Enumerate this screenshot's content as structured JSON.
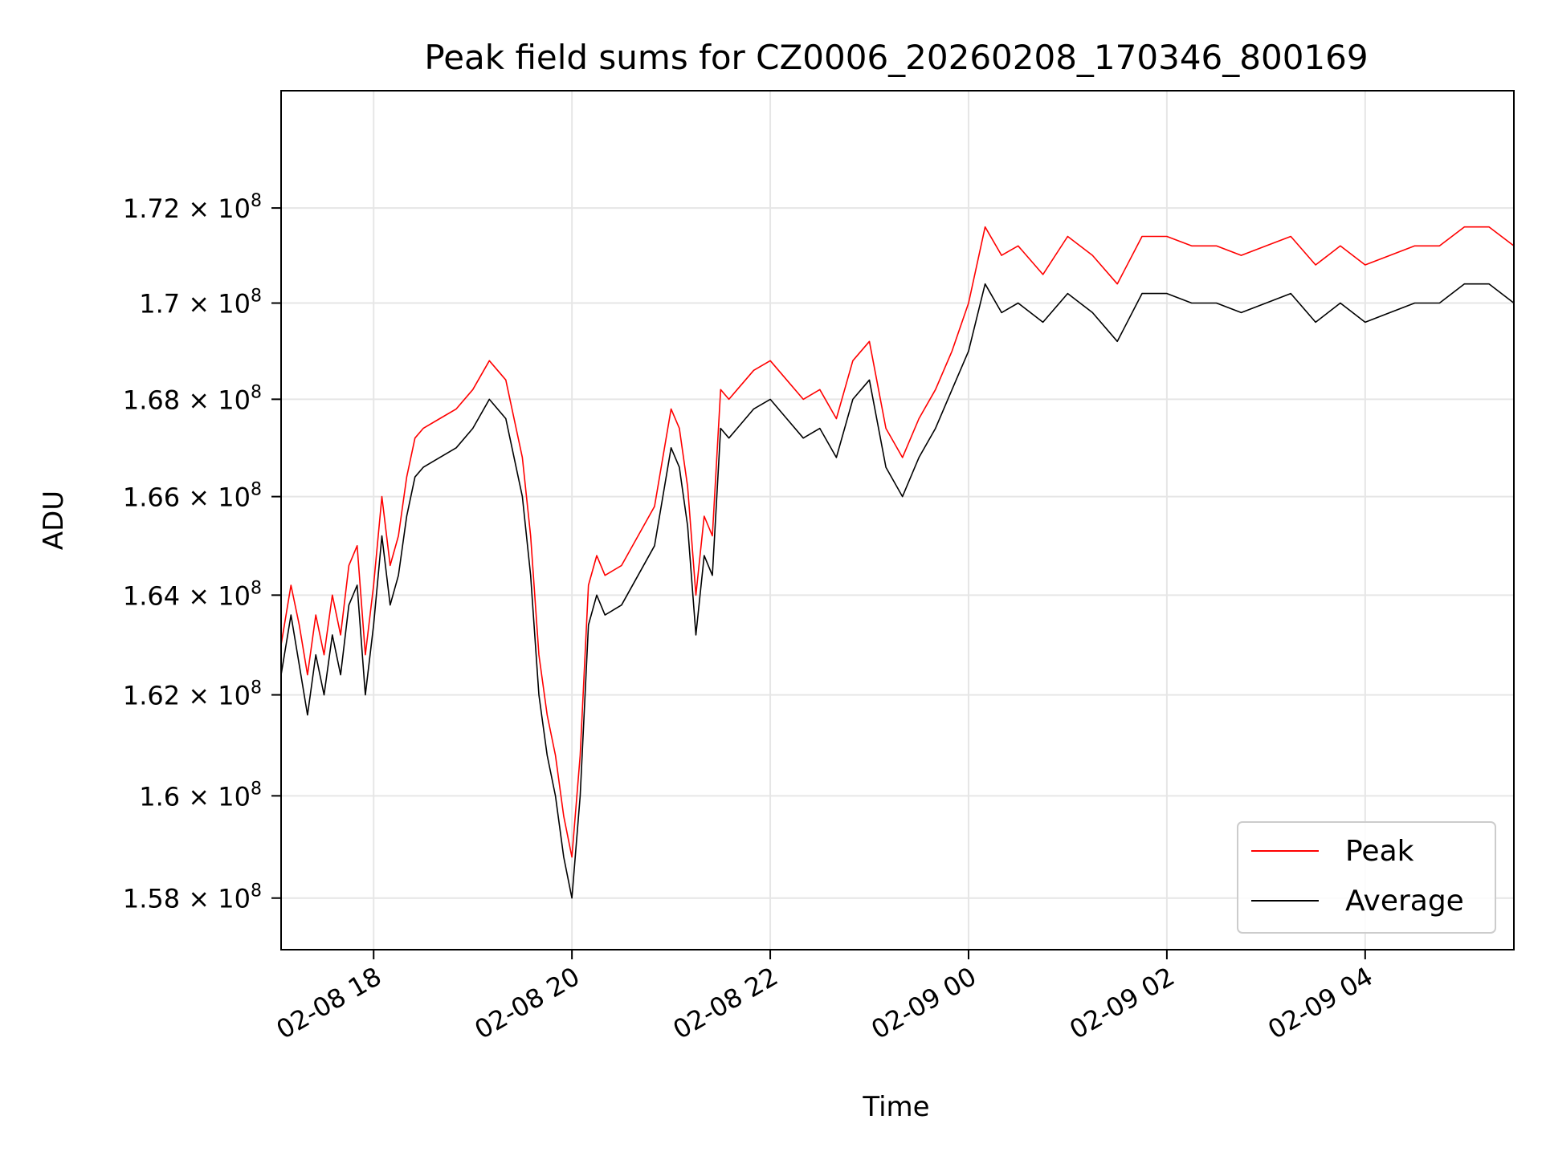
{
  "chart_data": {
    "type": "line",
    "title": "Peak field sums for CZ0006_20260208_170346_800169",
    "xlabel": "Time",
    "ylabel": "ADU",
    "y_scale": "log",
    "xlim": [
      "2026-02-08 17:04",
      "2026-02-09 05:30"
    ],
    "ylim": [
      157000000,
      174500000
    ],
    "grid": true,
    "legend_position": "lower-right",
    "x_ticks": [
      {
        "value": "2026-02-08 18:00",
        "label": "02-08 18"
      },
      {
        "value": "2026-02-08 20:00",
        "label": "02-08 20"
      },
      {
        "value": "2026-02-08 22:00",
        "label": "02-08 22"
      },
      {
        "value": "2026-02-09 00:00",
        "label": "02-09 00"
      },
      {
        "value": "2026-02-09 02:00",
        "label": "02-09 02"
      },
      {
        "value": "2026-02-09 04:00",
        "label": "02-09 04"
      }
    ],
    "y_ticks": [
      {
        "value": 158000000,
        "mantissa": "1.58",
        "exponent": "8"
      },
      {
        "value": 160000000,
        "mantissa": "1.6",
        "exponent": "8"
      },
      {
        "value": 162000000,
        "mantissa": "1.62",
        "exponent": "8"
      },
      {
        "value": 164000000,
        "mantissa": "1.64",
        "exponent": "8"
      },
      {
        "value": 166000000,
        "mantissa": "1.66",
        "exponent": "8"
      },
      {
        "value": 168000000,
        "mantissa": "1.68",
        "exponent": "8"
      },
      {
        "value": 170000000,
        "mantissa": "1.7",
        "exponent": "8"
      },
      {
        "value": 172000000,
        "mantissa": "1.72",
        "exponent": "8"
      }
    ],
    "x": [
      "2026-02-08 17:04",
      "2026-02-08 17:10",
      "2026-02-08 17:15",
      "2026-02-08 17:20",
      "2026-02-08 17:25",
      "2026-02-08 17:30",
      "2026-02-08 17:35",
      "2026-02-08 17:40",
      "2026-02-08 17:45",
      "2026-02-08 17:50",
      "2026-02-08 17:55",
      "2026-02-08 18:00",
      "2026-02-08 18:05",
      "2026-02-08 18:10",
      "2026-02-08 18:15",
      "2026-02-08 18:20",
      "2026-02-08 18:25",
      "2026-02-08 18:30",
      "2026-02-08 18:40",
      "2026-02-08 18:50",
      "2026-02-08 19:00",
      "2026-02-08 19:10",
      "2026-02-08 19:20",
      "2026-02-08 19:30",
      "2026-02-08 19:35",
      "2026-02-08 19:40",
      "2026-02-08 19:45",
      "2026-02-08 19:50",
      "2026-02-08 19:55",
      "2026-02-08 20:00",
      "2026-02-08 20:05",
      "2026-02-08 20:10",
      "2026-02-08 20:15",
      "2026-02-08 20:20",
      "2026-02-08 20:30",
      "2026-02-08 20:40",
      "2026-02-08 20:50",
      "2026-02-08 21:00",
      "2026-02-08 21:05",
      "2026-02-08 21:10",
      "2026-02-08 21:15",
      "2026-02-08 21:20",
      "2026-02-08 21:25",
      "2026-02-08 21:30",
      "2026-02-08 21:35",
      "2026-02-08 21:40",
      "2026-02-08 21:50",
      "2026-02-08 22:00",
      "2026-02-08 22:10",
      "2026-02-08 22:20",
      "2026-02-08 22:30",
      "2026-02-08 22:40",
      "2026-02-08 22:50",
      "2026-02-08 23:00",
      "2026-02-08 23:10",
      "2026-02-08 23:20",
      "2026-02-08 23:30",
      "2026-02-08 23:40",
      "2026-02-08 23:50",
      "2026-02-09 00:00",
      "2026-02-09 00:10",
      "2026-02-09 00:20",
      "2026-02-09 00:30",
      "2026-02-09 00:45",
      "2026-02-09 01:00",
      "2026-02-09 01:15",
      "2026-02-09 01:30",
      "2026-02-09 01:45",
      "2026-02-09 02:00",
      "2026-02-09 02:15",
      "2026-02-09 02:30",
      "2026-02-09 02:45",
      "2026-02-09 03:00",
      "2026-02-09 03:15",
      "2026-02-09 03:30",
      "2026-02-09 03:45",
      "2026-02-09 04:00",
      "2026-02-09 04:15",
      "2026-02-09 04:30",
      "2026-02-09 04:45",
      "2026-02-09 05:00",
      "2026-02-09 05:15",
      "2026-02-09 05:30"
    ],
    "series": [
      {
        "name": "Peak",
        "color": "#ff0000",
        "values": [
          163000000,
          164200000,
          163400000,
          162400000,
          163600000,
          162800000,
          164000000,
          163200000,
          164600000,
          165000000,
          162800000,
          164200000,
          166000000,
          164600000,
          165200000,
          166400000,
          167200000,
          167400000,
          167600000,
          167800000,
          168200000,
          168800000,
          168400000,
          166800000,
          165200000,
          162800000,
          161600000,
          160800000,
          159600000,
          158800000,
          160800000,
          164200000,
          164800000,
          164400000,
          164600000,
          165200000,
          165800000,
          167800000,
          167400000,
          166200000,
          164000000,
          165600000,
          165200000,
          168200000,
          168000000,
          168200000,
          168600000,
          168800000,
          168400000,
          168000000,
          168200000,
          167600000,
          168800000,
          169200000,
          167400000,
          166800000,
          167600000,
          168200000,
          169000000,
          170000000,
          171600000,
          171000000,
          171200000,
          170600000,
          171400000,
          171000000,
          170400000,
          171400000,
          171400000,
          171200000,
          171200000,
          171000000,
          171200000,
          171400000,
          170800000,
          171200000,
          170800000,
          171000000,
          171200000,
          171200000,
          171600000,
          171600000,
          171200000
        ]
      },
      {
        "name": "Average",
        "color": "#000000",
        "values": [
          162400000,
          163600000,
          162600000,
          161600000,
          162800000,
          162000000,
          163200000,
          162400000,
          163800000,
          164200000,
          162000000,
          163400000,
          165200000,
          163800000,
          164400000,
          165600000,
          166400000,
          166600000,
          166800000,
          167000000,
          167400000,
          168000000,
          167600000,
          166000000,
          164400000,
          162000000,
          160800000,
          160000000,
          158800000,
          158000000,
          160000000,
          163400000,
          164000000,
          163600000,
          163800000,
          164400000,
          165000000,
          167000000,
          166600000,
          165400000,
          163200000,
          164800000,
          164400000,
          167400000,
          167200000,
          167400000,
          167800000,
          168000000,
          167600000,
          167200000,
          167400000,
          166800000,
          168000000,
          168400000,
          166600000,
          166000000,
          166800000,
          167400000,
          168200000,
          169000000,
          170400000,
          169800000,
          170000000,
          169600000,
          170200000,
          169800000,
          169200000,
          170200000,
          170200000,
          170000000,
          170000000,
          169800000,
          170000000,
          170200000,
          169600000,
          170000000,
          169600000,
          169800000,
          170000000,
          170000000,
          170400000,
          170400000,
          170000000
        ]
      }
    ]
  }
}
